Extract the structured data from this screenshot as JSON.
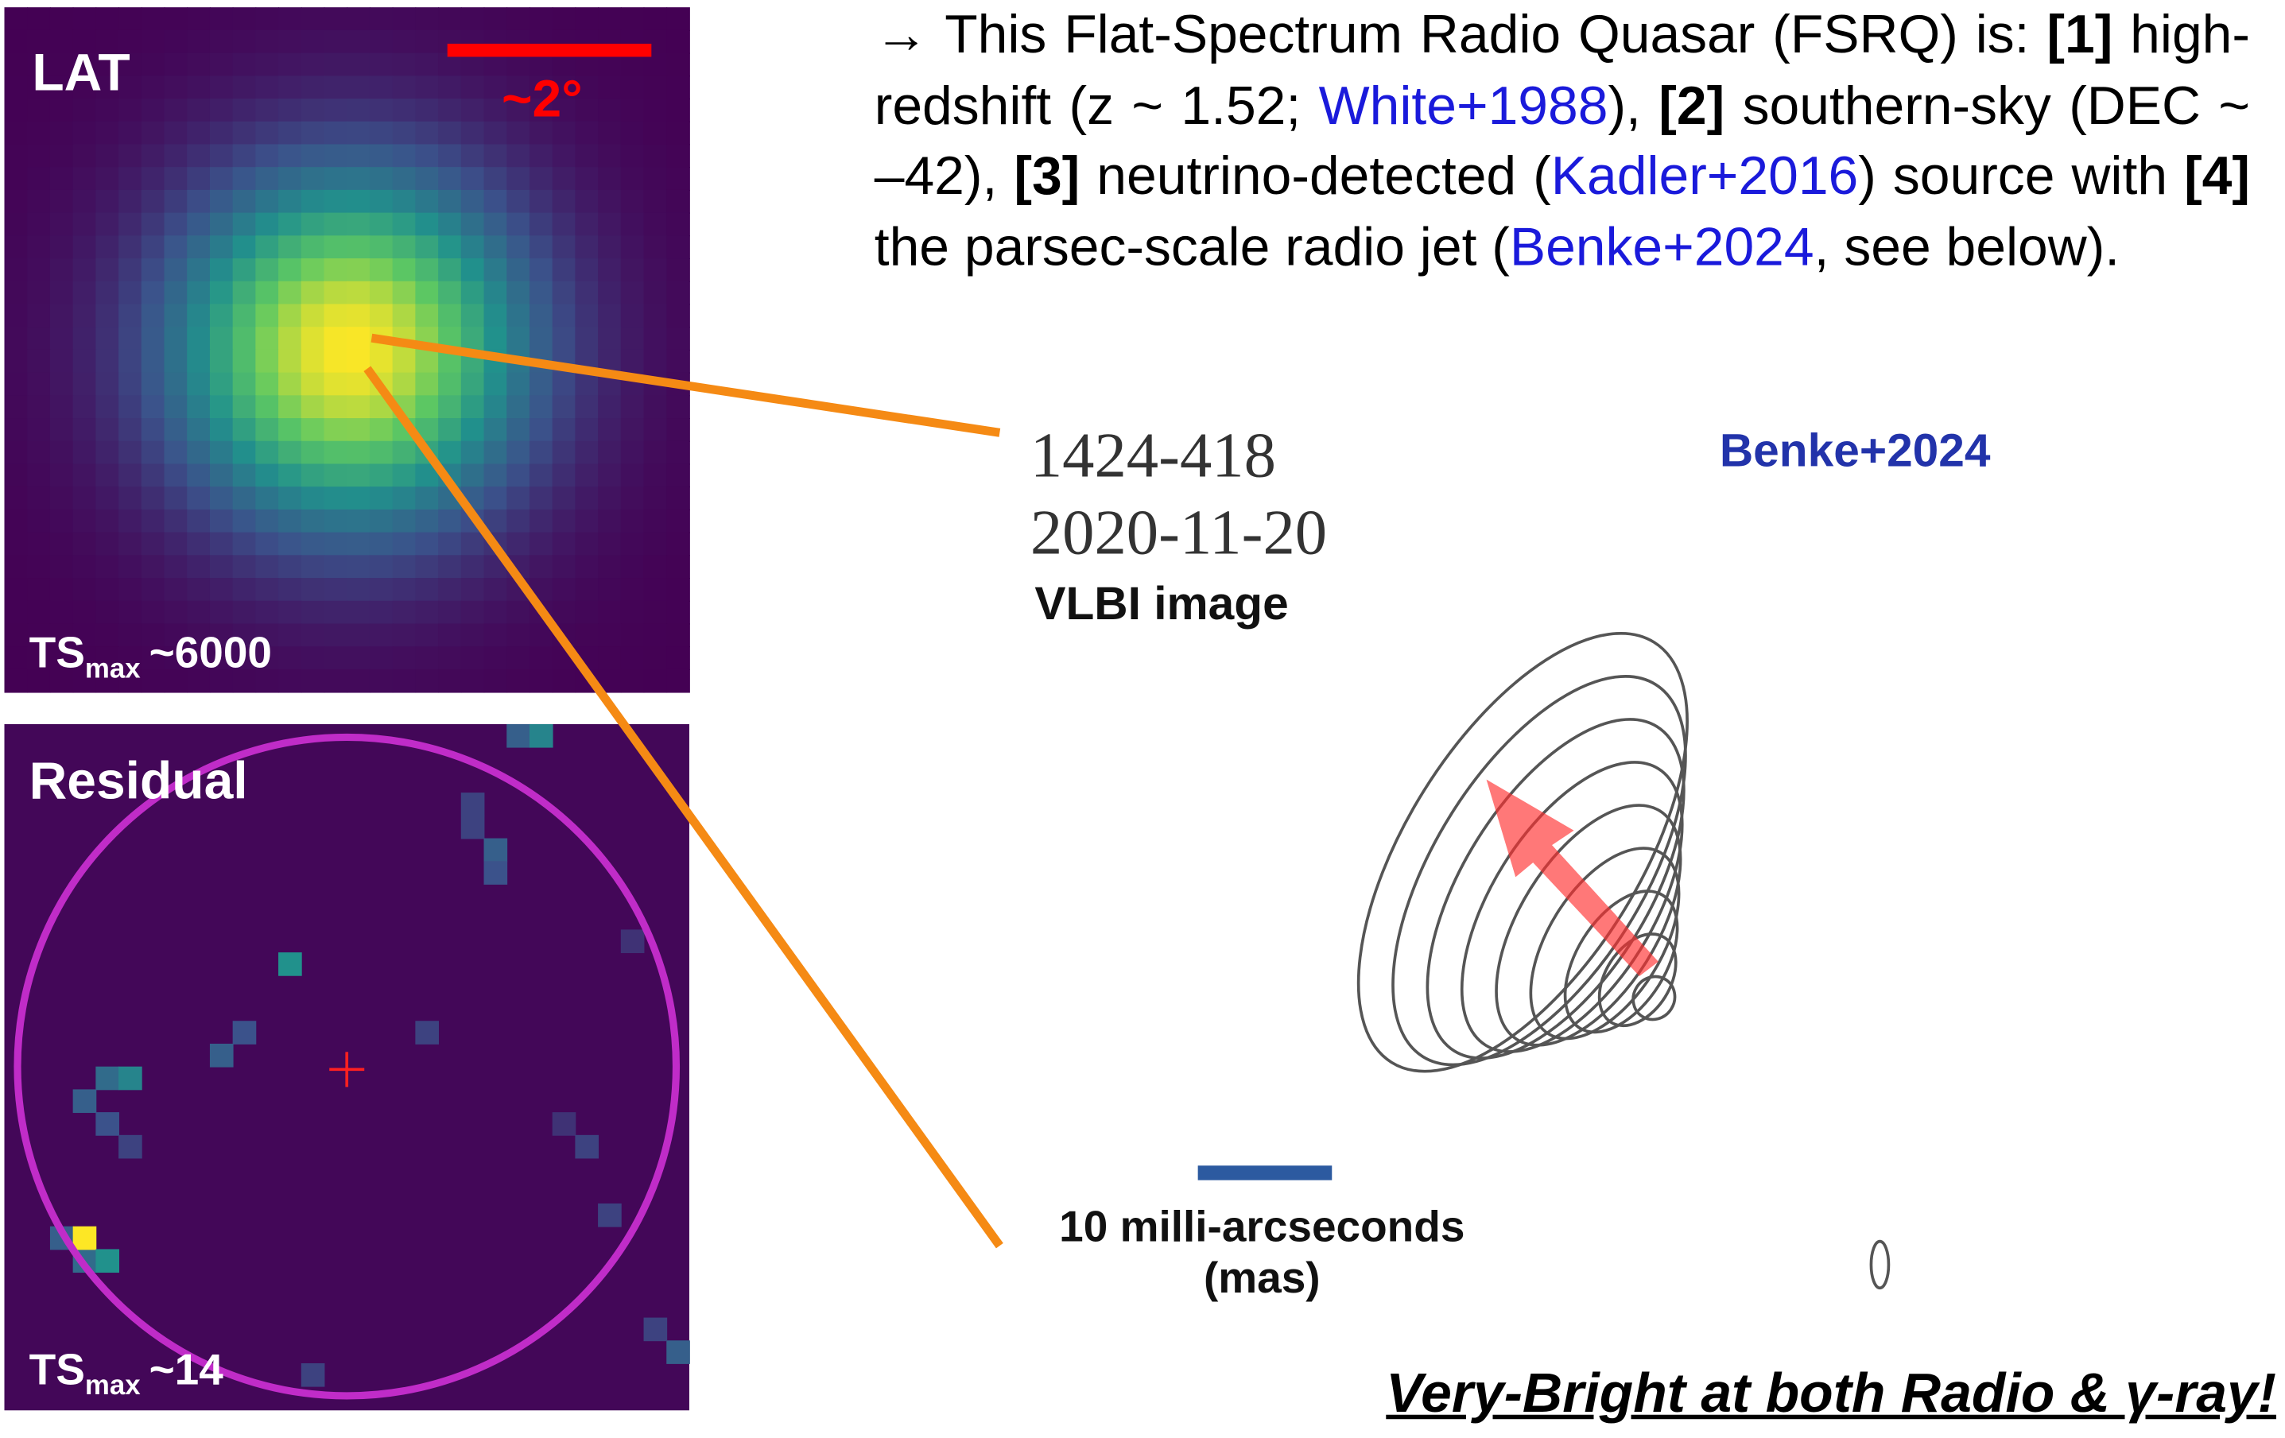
{
  "lat_panel": {
    "label": "LAT",
    "scale_label": "~2°",
    "ts": "TS",
    "ts_sub": "max",
    "ts_value": "~6000"
  },
  "residual_panel": {
    "label": "Residual",
    "ts": "TS",
    "ts_sub": "max",
    "ts_value": "~14"
  },
  "text": {
    "segments": [
      {
        "text": "→ This Flat-Spectrum Radio Quasar (FSRQ) is: ",
        "style": "plain"
      },
      {
        "text": "[1]",
        "style": "bold"
      },
      {
        "text": " high-redshift (z ~ 1.52; ",
        "style": "plain"
      },
      {
        "text": "White+1988",
        "style": "link"
      },
      {
        "text": "), ",
        "style": "plain"
      },
      {
        "text": "[2]",
        "style": "bold"
      },
      {
        "text": " southern-sky (DEC ~ –42), ",
        "style": "plain"
      },
      {
        "text": "[3]",
        "style": "bold"
      },
      {
        "text": " neutrino-detected (",
        "style": "plain"
      },
      {
        "text": "Kadler+2016",
        "style": "link"
      },
      {
        "text": ") source with ",
        "style": "plain"
      },
      {
        "text": "[4]",
        "style": "bold"
      },
      {
        "text": " the parsec-scale radio jet (",
        "style": "plain"
      },
      {
        "text": "Benke+2024",
        "style": "link"
      },
      {
        "text": ", see below).",
        "style": "plain"
      }
    ]
  },
  "vlbi": {
    "source": "1424-418",
    "date": "2020-11-20",
    "caption": "VLBI image",
    "credit": "Benke+2024",
    "scale_label": "10 milli-arcseconds",
    "scale_unit": "(mas)"
  },
  "footer": "Very-Bright at both Radio & γ-ray!"
}
